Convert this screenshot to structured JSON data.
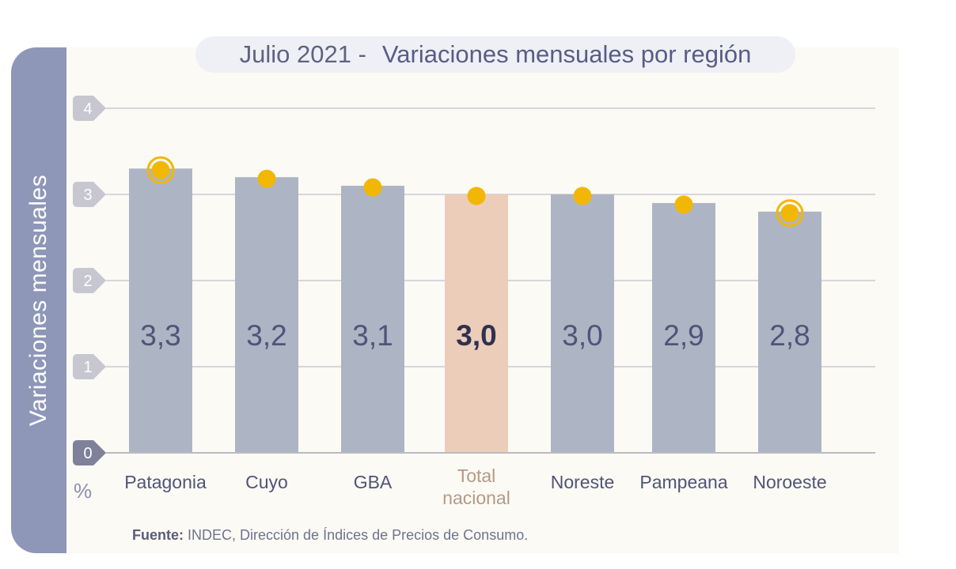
{
  "title_prefix": "Julio 2021 -",
  "title_main": "Variaciones mensuales por región",
  "side_label": "Variaciones  mensuales",
  "unit_label": "%",
  "source_bold": "Fuente:",
  "source_text": "INDEC, Dirección de Índices de Precios de Consumo.",
  "colors": {
    "bar": "#adb4c4",
    "bar_highlight": "#eccdba",
    "marker": "#f2b705",
    "value_text": "#4f5478",
    "value_text_highlight": "#2e3150",
    "label_highlight": "#b59a85",
    "tick_badge": "#c6c7d1",
    "tick_badge_zero": "#7e8199"
  },
  "chart_data": {
    "type": "bar",
    "title": "Julio 2021 - Variaciones mensuales por región",
    "ylabel": "Variaciones  mensuales",
    "yunit": "%",
    "ylim": [
      0,
      4
    ],
    "yticks": [
      "0",
      "1",
      "2",
      "3",
      "4"
    ],
    "grid": true,
    "categories": [
      [
        "Patagonia"
      ],
      [
        "Cuyo"
      ],
      [
        "GBA"
      ],
      [
        "Total",
        "nacional"
      ],
      [
        "Noreste"
      ],
      [
        "Pampeana"
      ],
      [
        "Noroeste"
      ]
    ],
    "values": [
      3.3,
      3.2,
      3.1,
      3.0,
      3.0,
      2.9,
      2.8
    ],
    "value_labels": [
      "3,3",
      "3,2",
      "3,1",
      "3,0",
      "3,0",
      "2,9",
      "2,8"
    ],
    "highlight_index": 3,
    "ring_marker_indices": [
      0,
      6
    ]
  }
}
